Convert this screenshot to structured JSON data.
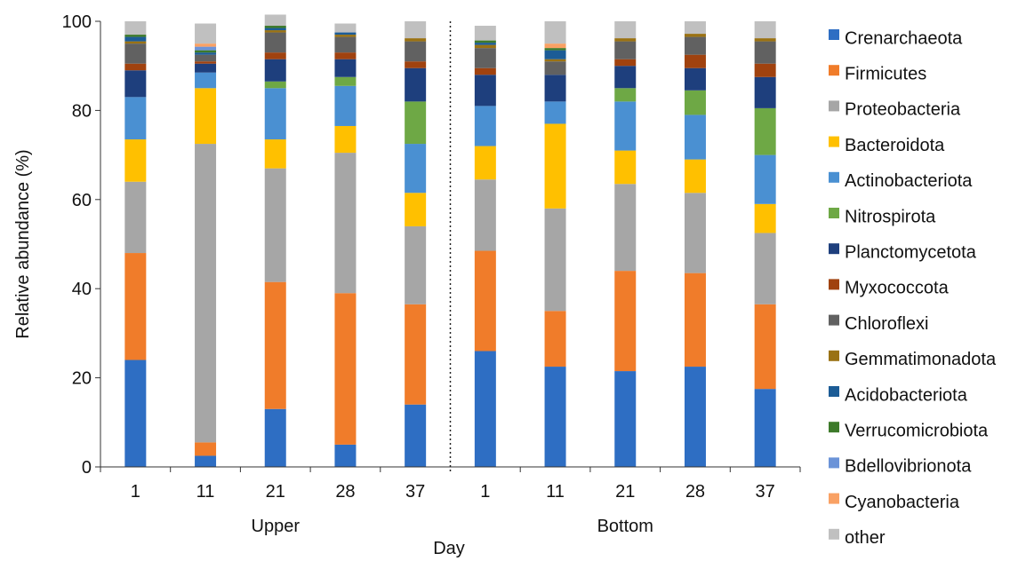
{
  "chart_data": {
    "type": "bar",
    "stacked": true,
    "ylabel": "Relative abundance (%)",
    "xlabel": "Day",
    "ylim": [
      0,
      100
    ],
    "yticks": [
      0,
      20,
      40,
      60,
      80,
      100
    ],
    "groups": [
      "Upper",
      "Bottom"
    ],
    "categories": [
      "1",
      "11",
      "21",
      "28",
      "37",
      "1",
      "11",
      "21",
      "28",
      "37"
    ],
    "category_group": [
      "Upper",
      "Upper",
      "Upper",
      "Upper",
      "Upper",
      "Bottom",
      "Bottom",
      "Bottom",
      "Bottom",
      "Bottom"
    ],
    "legend_position": "right",
    "series": [
      {
        "name": "Crenarchaeota",
        "color": "#2e6ec3",
        "values": [
          24,
          2.5,
          13,
          5,
          14,
          26,
          22.5,
          21.5,
          22.5,
          17.5
        ]
      },
      {
        "name": "Firmicutes",
        "color": "#f07c2a",
        "values": [
          24,
          3,
          28.5,
          34,
          22.5,
          22.5,
          12.5,
          22.5,
          21,
          19
        ]
      },
      {
        "name": "Proteobacteria",
        "color": "#a6a6a6",
        "values": [
          16,
          67,
          25.5,
          31.5,
          17.5,
          16,
          23,
          19.5,
          18,
          16
        ]
      },
      {
        "name": "Bacteroidota",
        "color": "#ffc000",
        "values": [
          9.5,
          12.5,
          6.5,
          6,
          7.5,
          7.5,
          19,
          7.5,
          7.5,
          6.5
        ]
      },
      {
        "name": "Actinobacteriota",
        "color": "#4a90d2",
        "values": [
          9.5,
          3.5,
          11.5,
          9,
          11,
          9,
          5,
          11,
          10,
          11
        ]
      },
      {
        "name": "Nitrospirota",
        "color": "#6ea845",
        "values": [
          0,
          0,
          1.5,
          2,
          9.5,
          0,
          0,
          3,
          5.5,
          10.5
        ]
      },
      {
        "name": "Planctomycetota",
        "color": "#1e3f7d",
        "values": [
          6,
          2,
          5,
          4,
          7.5,
          7,
          6,
          5,
          5,
          7
        ]
      },
      {
        "name": "Myxococcota",
        "color": "#a0420f",
        "values": [
          1.5,
          0.5,
          1.5,
          1.5,
          1.5,
          1.5,
          0,
          1.5,
          3,
          3
        ]
      },
      {
        "name": "Chloroflexi",
        "color": "#616161",
        "values": [
          4.5,
          1.5,
          4.5,
          3.5,
          4.5,
          4.5,
          3,
          4,
          4,
          5
        ]
      },
      {
        "name": "Gemmatimonadota",
        "color": "#9a7214",
        "values": [
          0.5,
          0,
          0.5,
          0.5,
          0.7,
          0.7,
          0.5,
          0.7,
          0.7,
          0.7
        ]
      },
      {
        "name": "Acidobacteriota",
        "color": "#1c5c96",
        "values": [
          1,
          0.5,
          0.5,
          0.5,
          0,
          0.5,
          2,
          0,
          0,
          0
        ]
      },
      {
        "name": "Verrucomicrobiota",
        "color": "#3d7a2a",
        "values": [
          0.5,
          0.5,
          0.5,
          0,
          0,
          0.5,
          0.5,
          0,
          0,
          0
        ]
      },
      {
        "name": "Bdellovibrionota",
        "color": "#6b93d8",
        "values": [
          0,
          0.8,
          0,
          0,
          0,
          0,
          0,
          0,
          0,
          0
        ]
      },
      {
        "name": "Cyanobacteria",
        "color": "#f9a164",
        "values": [
          0,
          0.7,
          0,
          0,
          0,
          0,
          1,
          0,
          0,
          0
        ]
      },
      {
        "name": "other",
        "color": "#c0c0c0",
        "values": [
          3,
          4.5,
          2.5,
          2,
          3.8,
          3.3,
          5,
          3.8,
          2.8,
          3.8
        ]
      }
    ]
  }
}
